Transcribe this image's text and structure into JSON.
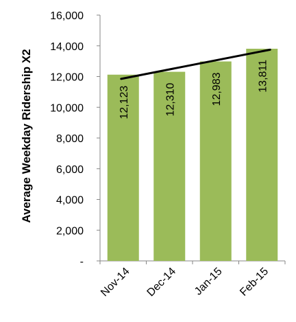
{
  "chart_data": {
    "type": "bar",
    "categories": [
      "Nov-14",
      "Dec-14",
      "Jan-15",
      "Feb-15"
    ],
    "values": [
      12123,
      12310,
      12983,
      13811
    ],
    "value_labels": [
      "12,123",
      "12,310",
      "12,983",
      "13,811"
    ],
    "ylabel": "Average Weekday Ridership X2",
    "ylim": [
      0,
      16000
    ],
    "yticks": [
      0,
      2000,
      4000,
      6000,
      8000,
      10000,
      12000,
      14000,
      16000
    ],
    "ytick_labels": [
      "-",
      "2,000",
      "4,000",
      "6,000",
      "8,000",
      "10,000",
      "12,000",
      "14,000",
      "16,000"
    ],
    "trendline": {
      "type": "linear",
      "start": 11850,
      "end": 13750
    },
    "grid": false,
    "legend": "none",
    "colors": {
      "bar": "#9bbb59",
      "trendline": "#000000",
      "axis": "#868686",
      "text": "#000000"
    }
  }
}
